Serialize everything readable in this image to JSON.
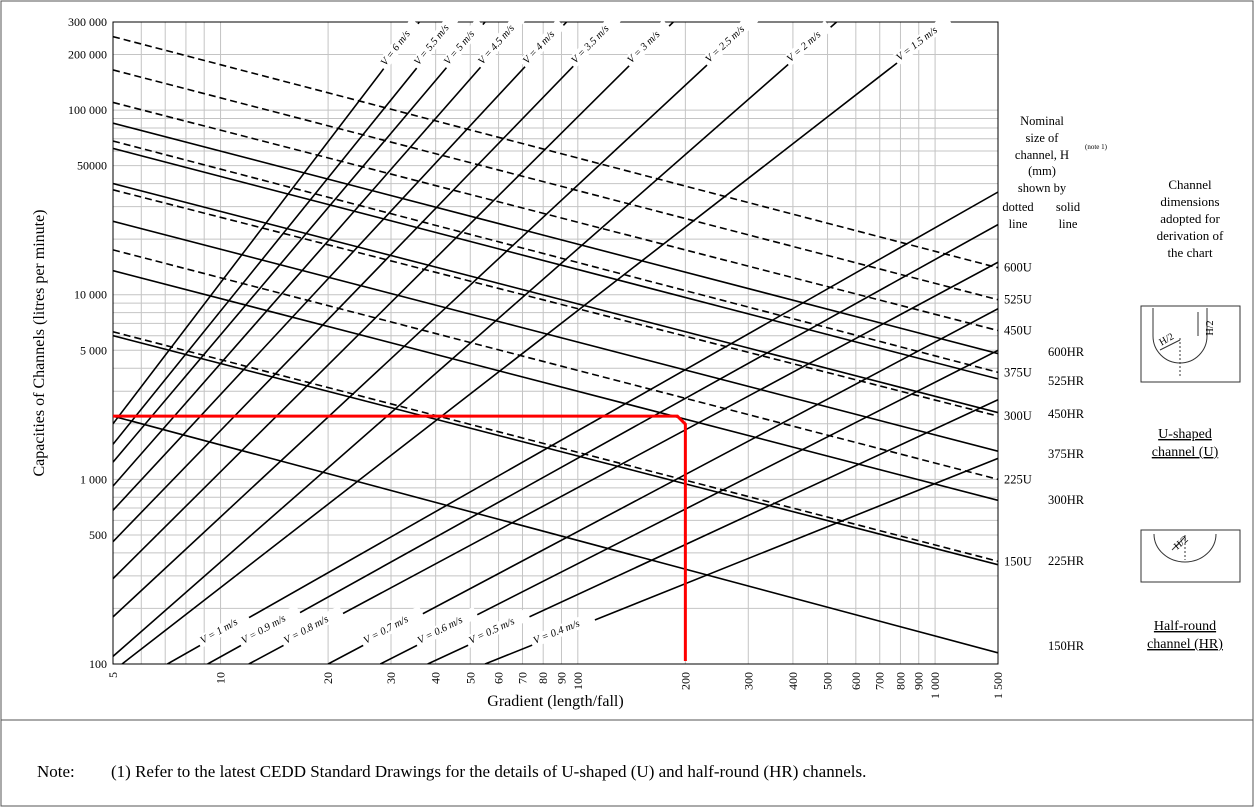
{
  "chart_data": {
    "type": "line",
    "title": "",
    "xlabel": "Gradient (length/fall)",
    "ylabel": "Capacities of Channels (litres per minute)",
    "x_scale": "log",
    "y_scale": "log",
    "xlim": [
      5,
      1500
    ],
    "ylim": [
      100,
      300000
    ],
    "grid": true,
    "x_tick_labels": [
      "5",
      "10",
      "20",
      "30",
      "40",
      "50",
      "60",
      "70",
      "80",
      "90",
      "100",
      "200",
      "300",
      "400",
      "500",
      "600",
      "700",
      "800",
      "900",
      "1 000",
      "1 500"
    ],
    "y_tick_labels": [
      "100",
      "500",
      "1 000",
      "5 000",
      "10 000",
      "50000",
      "100 000",
      "200 000",
      "300 000"
    ],
    "velocity_lines": [
      {
        "label": "V = 6 m/s",
        "points": [
          [
            5,
            2000
          ],
          [
            36,
            300000
          ]
        ]
      },
      {
        "label": "V = 5.5 m/s",
        "points": [
          [
            5,
            1550
          ],
          [
            45,
            300000
          ]
        ]
      },
      {
        "label": "V = 5 m/s",
        "points": [
          [
            5,
            1240
          ],
          [
            55,
            300000
          ]
        ]
      },
      {
        "label": "V = 4.5 m/s",
        "points": [
          [
            5,
            920
          ],
          [
            69,
            300000
          ]
        ]
      },
      {
        "label": "V = 4 m/s",
        "points": [
          [
            5,
            680
          ],
          [
            93,
            300000
          ]
        ]
      },
      {
        "label": "V = 3.5 m/s",
        "points": [
          [
            5,
            460
          ],
          [
            128,
            300000
          ]
        ]
      },
      {
        "label": "V = 3 m/s",
        "points": [
          [
            5,
            290
          ],
          [
            185,
            300000
          ]
        ]
      },
      {
        "label": "V = 2.5 m/s",
        "points": [
          [
            5,
            180
          ],
          [
            310,
            300000
          ]
        ]
      },
      {
        "label": "V = 2 m/s",
        "points": [
          [
            5,
            110
          ],
          [
            530,
            300000
          ]
        ]
      },
      {
        "label": "V = 1.5 m/s",
        "points": [
          [
            5.3,
            100
          ],
          [
            1100,
            300000
          ]
        ]
      },
      {
        "label": "V = 1 m/s",
        "points": [
          [
            7.1,
            100
          ],
          [
            1500,
            36000
          ]
        ]
      },
      {
        "label": "V = 0.9 m/s",
        "points": [
          [
            9.2,
            100
          ],
          [
            1500,
            24000
          ]
        ]
      },
      {
        "label": "V = 0.8 m/s",
        "points": [
          [
            12,
            100
          ],
          [
            1500,
            15000
          ]
        ]
      },
      {
        "label": "V = 0.7 m/s",
        "points": [
          [
            20,
            100
          ],
          [
            1500,
            8400
          ]
        ]
      },
      {
        "label": "V = 0.6 m/s",
        "points": [
          [
            28,
            100
          ],
          [
            1500,
            5000
          ]
        ]
      },
      {
        "label": "V = 0.5 m/s",
        "points": [
          [
            38,
            100
          ],
          [
            1500,
            2700
          ]
        ]
      },
      {
        "label": "V = 0.4 m/s",
        "points": [
          [
            55,
            100
          ],
          [
            1500,
            1300
          ]
        ]
      }
    ],
    "channel_lines_solid": [
      {
        "label": "600HR",
        "points": [
          [
            5,
            85000
          ],
          [
            1500,
            4800
          ]
        ]
      },
      {
        "label": "525HR",
        "points": [
          [
            5,
            62000
          ],
          [
            1500,
            3500
          ]
        ]
      },
      {
        "label": "450HR",
        "points": [
          [
            5,
            40000
          ],
          [
            1500,
            2300
          ]
        ]
      },
      {
        "label": "375HR",
        "points": [
          [
            5,
            25000
          ],
          [
            1500,
            1420
          ]
        ]
      },
      {
        "label": "300HR",
        "points": [
          [
            5,
            13500
          ],
          [
            1500,
            770
          ]
        ]
      },
      {
        "label": "225HR",
        "points": [
          [
            5,
            6000
          ],
          [
            1500,
            345
          ]
        ]
      },
      {
        "label": "150HR",
        "points": [
          [
            5,
            2200
          ],
          [
            1500,
            115
          ]
        ]
      }
    ],
    "channel_lines_dotted": [
      {
        "label": "600U",
        "points": [
          [
            5,
            250000
          ],
          [
            1500,
            14000
          ]
        ]
      },
      {
        "label": "525U",
        "points": [
          [
            5,
            165000
          ],
          [
            1500,
            9400
          ]
        ]
      },
      {
        "label": "450U",
        "points": [
          [
            5,
            110000
          ],
          [
            1500,
            6400
          ]
        ]
      },
      {
        "label": "375U",
        "points": [
          [
            5,
            68000
          ],
          [
            1500,
            3800
          ]
        ]
      },
      {
        "label": "300U",
        "points": [
          [
            5,
            37000
          ],
          [
            1500,
            2200
          ]
        ]
      },
      {
        "label": "225U",
        "points": [
          [
            5,
            17500
          ],
          [
            1500,
            1000
          ]
        ]
      },
      {
        "label": "150U",
        "points": [
          [
            5,
            6300
          ],
          [
            1500,
            360
          ]
        ]
      }
    ],
    "highlight": {
      "color": "#ff0000",
      "gradient": 200,
      "capacity": 2200
    },
    "legend_header": [
      "Nominal",
      "size of",
      "channel, H",
      "(mm)",
      "shown by"
    ],
    "legend_note_ref": "(note 1)",
    "legend_dotted": [
      "dotted",
      "line"
    ],
    "legend_solid": [
      "solid",
      "line"
    ]
  },
  "side_panel": {
    "title_lines": [
      "Channel",
      "dimensions",
      "adopted for",
      "derivation of",
      "the chart"
    ],
    "u_dims": [
      "H/2",
      "H/2"
    ],
    "hr_dim": "H/2",
    "u_label": [
      "U-shaped",
      "channel (U)"
    ],
    "hr_label": [
      "Half-round",
      "channel (HR)"
    ]
  },
  "note": {
    "label": "Note:",
    "text": "(1) Refer to the latest CEDD Standard Drawings for the details of U-shaped (U) and half-round (HR) channels."
  }
}
